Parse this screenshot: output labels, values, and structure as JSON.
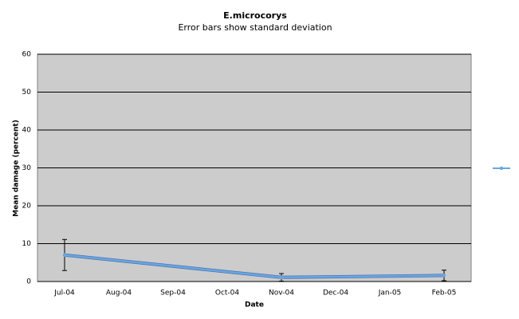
{
  "chart_data": {
    "type": "line",
    "title": "E.microcorys",
    "subtitle": "Error bars show standard deviation",
    "x_label": "Date",
    "y_label": "Mean damage (percent)",
    "categories": [
      "Jul-04",
      "Aug-04",
      "Sep-04",
      "Oct-04",
      "Nov-04",
      "Dec-04",
      "Jan-05",
      "Feb-05"
    ],
    "series": [
      {
        "color": "#6aa7de",
        "x": [
          "Jul-04",
          "Nov-04",
          "Feb-05"
        ],
        "values": [
          7,
          1.1,
          1.6
        ],
        "errors": [
          4.1,
          1,
          1.4
        ]
      }
    ],
    "ylim": [
      0,
      60
    ],
    "yticks": [
      0,
      10,
      20,
      30,
      40,
      50,
      60
    ],
    "grid": true,
    "plot_background": "#cccccc"
  }
}
